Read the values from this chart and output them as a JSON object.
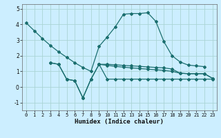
{
  "xlabel": "Humidex (Indice chaleur)",
  "background_color": "#cceeff",
  "grid_color": "#aad4d4",
  "line_color": "#1a6e6e",
  "xlim": [
    -0.5,
    23.5
  ],
  "ylim": [
    -1.5,
    5.3
  ],
  "yticks": [
    -1,
    0,
    1,
    2,
    3,
    4,
    5
  ],
  "xticks": [
    0,
    1,
    2,
    3,
    4,
    5,
    6,
    7,
    8,
    9,
    10,
    11,
    12,
    13,
    14,
    15,
    16,
    17,
    18,
    19,
    20,
    21,
    22,
    23
  ],
  "line1_x": [
    0,
    1,
    2,
    3,
    4,
    5,
    6,
    7,
    8,
    9,
    10,
    11,
    12,
    13,
    14,
    15,
    16,
    17,
    18,
    19,
    20,
    21,
    22
  ],
  "line1_y": [
    4.1,
    3.6,
    3.1,
    2.65,
    2.25,
    1.9,
    1.55,
    1.25,
    1.0,
    2.6,
    3.2,
    3.85,
    4.65,
    4.7,
    4.7,
    4.75,
    4.2,
    2.9,
    2.0,
    1.6,
    1.4,
    1.35,
    1.3
  ],
  "line2_x": [
    3,
    4,
    5,
    6,
    7,
    8,
    9,
    10,
    11,
    12,
    13,
    14,
    15,
    16,
    17,
    18,
    19,
    20,
    21,
    22,
    23
  ],
  "line2_y": [
    1.55,
    1.45,
    0.5,
    0.4,
    -0.7,
    0.5,
    1.45,
    1.45,
    1.42,
    1.38,
    1.35,
    1.32,
    1.28,
    1.25,
    1.22,
    1.15,
    0.88,
    0.85,
    0.85,
    0.85,
    0.55
  ],
  "line3_x": [
    3,
    4,
    5,
    6,
    7,
    8,
    9,
    10,
    11,
    12,
    13,
    14,
    15,
    16,
    17,
    18,
    19,
    20,
    21,
    22,
    23
  ],
  "line3_y": [
    1.55,
    1.45,
    0.5,
    0.4,
    -0.7,
    0.5,
    1.45,
    0.5,
    0.5,
    0.5,
    0.5,
    0.5,
    0.5,
    0.5,
    0.5,
    0.5,
    0.5,
    0.5,
    0.5,
    0.5,
    0.5
  ],
  "line4_x": [
    9,
    10,
    11,
    12,
    13,
    14,
    15,
    16,
    17,
    18,
    19,
    20,
    21,
    22,
    23
  ],
  "line4_y": [
    1.45,
    1.38,
    1.32,
    1.27,
    1.22,
    1.18,
    1.14,
    1.1,
    1.06,
    1.0,
    0.88,
    0.85,
    0.85,
    0.85,
    0.55
  ]
}
